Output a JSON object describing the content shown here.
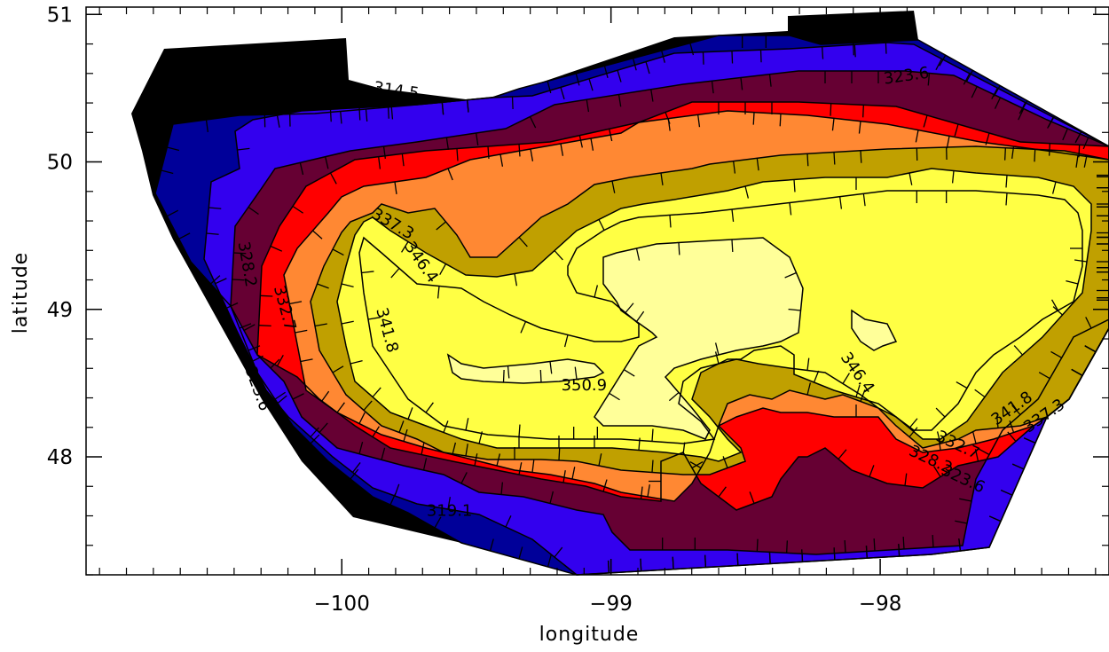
{
  "chart_data": {
    "type": "filled-contour",
    "xlabel": "longitude",
    "ylabel": "latitude",
    "xlim": [
      -100.95,
      -97.15
    ],
    "ylim": [
      47.2,
      51.05
    ],
    "x_ticks": [
      {
        "value": -100,
        "label": "−100"
      },
      {
        "value": -99,
        "label": "−99"
      },
      {
        "value": -98,
        "label": "−98"
      }
    ],
    "y_ticks": [
      {
        "value": 48,
        "label": "48"
      },
      {
        "value": 49,
        "label": "49"
      },
      {
        "value": 50,
        "label": "50"
      },
      {
        "value": 51,
        "label": "51"
      }
    ],
    "levels": [
      314.5,
      319.1,
      323.6,
      328.2,
      332.7,
      337.3,
      341.8,
      346.4,
      350.9
    ],
    "fill_colors": [
      "#000000",
      "#000099",
      "#3300ee",
      "#660033",
      "#ff0000",
      "#ff8833",
      "#c0a000",
      "#ffff44",
      "#ffff99"
    ],
    "contour_labels": [
      {
        "text": "314.5",
        "lon": -99.8,
        "lat": 50.45,
        "angle": 8
      },
      {
        "text": "319.1",
        "lon": -99.6,
        "lat": 47.6,
        "angle": 0
      },
      {
        "text": "323.6",
        "lon": -97.9,
        "lat": 50.55,
        "angle": -8
      },
      {
        "text": "323.6",
        "lon": -100.33,
        "lat": 48.45,
        "angle": 70
      },
      {
        "text": "323.6",
        "lon": -97.7,
        "lat": 47.82,
        "angle": 25
      },
      {
        "text": "328.2",
        "lon": -100.37,
        "lat": 49.3,
        "angle": 80
      },
      {
        "text": "328.2",
        "lon": -97.82,
        "lat": 47.95,
        "angle": 25
      },
      {
        "text": "332.7",
        "lon": -100.23,
        "lat": 49.0,
        "angle": 75
      },
      {
        "text": "332.7",
        "lon": -97.72,
        "lat": 48.05,
        "angle": 25
      },
      {
        "text": "337.3",
        "lon": -99.82,
        "lat": 49.55,
        "angle": 30
      },
      {
        "text": "337.3",
        "lon": -97.38,
        "lat": 48.25,
        "angle": -35
      },
      {
        "text": "341.8",
        "lon": -99.85,
        "lat": 48.85,
        "angle": 75
      },
      {
        "text": "341.8",
        "lon": -97.5,
        "lat": 48.3,
        "angle": -35
      },
      {
        "text": "346.4",
        "lon": -99.72,
        "lat": 49.3,
        "angle": 55
      },
      {
        "text": "346.4",
        "lon": -98.1,
        "lat": 48.55,
        "angle": 55
      },
      {
        "text": "350.9",
        "lon": -99.1,
        "lat": 48.45,
        "angle": 0
      }
    ]
  }
}
